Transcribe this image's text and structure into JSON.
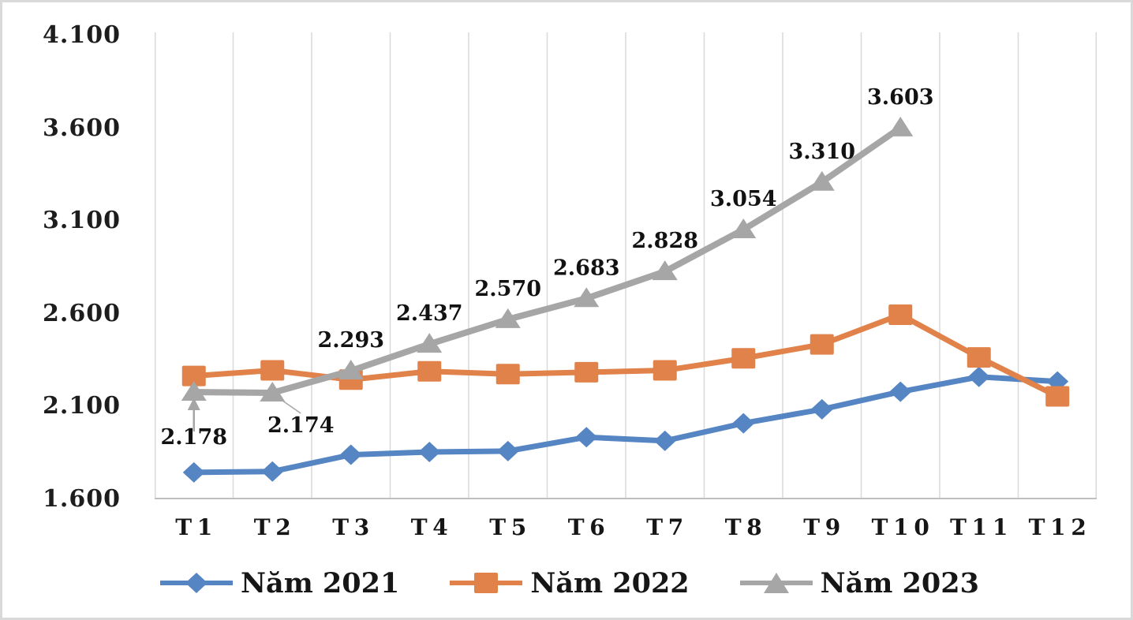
{
  "chart_data": {
    "type": "line",
    "title": "",
    "xlabel": "",
    "ylabel": "",
    "categories": [
      "T1",
      "T2",
      "T3",
      "T4",
      "T5",
      "T6",
      "T7",
      "T8",
      "T9",
      "T10",
      "T11",
      "T12"
    ],
    "ylim": [
      1600,
      4100
    ],
    "y_tick_step": 500,
    "y_tick_labels": [
      "4.100",
      "3.600",
      "3.100",
      "2.600",
      "2.100",
      "1.600"
    ],
    "grid": "vertical-gridlines-only",
    "legend_position": "bottom",
    "axis_color": "#BFBFBF",
    "gridline_color": "#D9D9D9",
    "text_color": "#1d1d1d",
    "series": [
      {
        "name": "Năm 2021",
        "color": "#5585C2",
        "marker": "diamond",
        "values": [
          1745,
          1750,
          1840,
          1855,
          1860,
          1935,
          1915,
          2010,
          2085,
          2180,
          2260,
          2235
        ],
        "labels": null
      },
      {
        "name": "Năm 2022",
        "color": "#E08249",
        "marker": "square",
        "values": [
          2265,
          2295,
          2245,
          2290,
          2275,
          2285,
          2295,
          2360,
          2435,
          2595,
          2365,
          2155
        ],
        "labels": null
      },
      {
        "name": "Năm 2023",
        "color": "#A6A6A6",
        "marker": "triangle",
        "values": [
          2178,
          2174,
          2293,
          2437,
          2570,
          2683,
          2828,
          3054,
          3310,
          3603,
          null,
          null
        ],
        "labels": [
          "2.178",
          "2.174",
          "2.293",
          "2.437",
          "2.570",
          "2.683",
          "2.828",
          "3.054",
          "3.310",
          "3.603"
        ],
        "label_placement": [
          "below-arrow",
          "below-leader",
          "above",
          "above",
          "above",
          "above",
          "above",
          "above",
          "above",
          "above"
        ]
      }
    ]
  }
}
